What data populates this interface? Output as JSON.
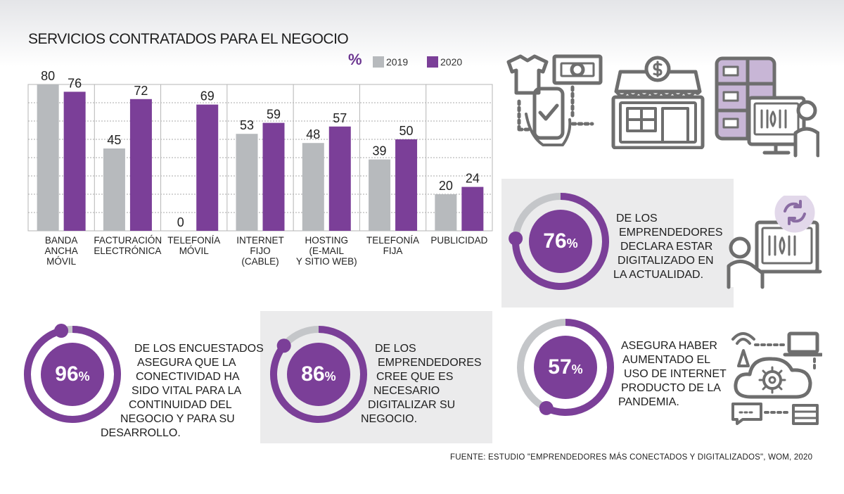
{
  "colors": {
    "y2019": "#b7babd",
    "y2020": "#7b3f98",
    "accent": "#6b3590",
    "ring_track": "#c4c6c9",
    "panel": "#ebebec",
    "icon": "#6e6e6e",
    "icon_fill": "#c8b6d6"
  },
  "chart_data": {
    "type": "bar",
    "title": "SERVICIOS CONTRATADOS PARA EL NEGOCIO",
    "unit_label": "%",
    "categories": [
      "BANDA ANCHA MÓVIL",
      "FACTURACIÓN ELECTRÓNICA",
      "TELEFONÍA MÓVIL",
      "INTERNET FIJO (CABLE)",
      "HOSTING (E-MAIL Y SITIO WEB)",
      "TELEFONÍA FIJA",
      "PUBLICIDAD"
    ],
    "category_lines": [
      [
        "BANDA",
        "ANCHA",
        "MÓVIL"
      ],
      [
        "FACTURACIÓN",
        "ELECTRÓNICA"
      ],
      [
        "TELEFONÍA",
        "MÓVIL"
      ],
      [
        "INTERNET",
        "FIJO",
        "(CABLE)"
      ],
      [
        "HOSTING",
        "(E-MAIL",
        "Y SITIO WEB)"
      ],
      [
        "TELEFONÍA",
        "FIJA"
      ],
      [
        "PUBLICIDAD"
      ]
    ],
    "series": [
      {
        "name": "2019",
        "values": [
          80,
          45,
          0,
          53,
          48,
          39,
          20
        ]
      },
      {
        "name": "2020",
        "values": [
          76,
          72,
          69,
          59,
          57,
          50,
          24
        ]
      }
    ],
    "ylim": [
      0,
      80
    ],
    "grid": true,
    "legend": "top-right"
  },
  "stats": [
    {
      "id": "s76",
      "value": 76,
      "display": "76",
      "lines": [
        "DE LOS",
        "EMPRENDEDORES",
        "DECLARA ESTAR",
        "DIGITALIZADO EN",
        "LA ACTUALIDAD."
      ]
    },
    {
      "id": "s96",
      "value": 96,
      "display": "96",
      "lines": [
        "DE LOS ENCUESTADOS",
        "ASEGURA QUE LA",
        "CONECTIVIDAD HA",
        "SIDO VITAL PARA LA",
        "CONTINUIDAD DEL",
        "NEGOCIO Y PARA SU",
        "DESARROLLO."
      ]
    },
    {
      "id": "s86",
      "value": 86,
      "display": "86",
      "lines": [
        "DE LOS",
        "EMPRENDEDORES",
        "CREE QUE ES",
        "NECESARIO",
        "DIGITALIZAR SU",
        "NEGOCIO."
      ]
    },
    {
      "id": "s57",
      "value": 57,
      "display": "57",
      "lines": [
        "ASEGURA HABER",
        "AUMENTADO EL",
        "USO DE INTERNET",
        "PRODUCTO DE LA",
        "PANDEMIA."
      ]
    }
  ],
  "pct_symbol": "%",
  "source": "FUENTE: ESTUDIO \"EMPRENDEDORES MÁS CONECTADOS Y DIGITALIZADOS\", WOM, 2020",
  "icons": [
    "ecommerce-icon",
    "storefront-icon",
    "server-computer-icon",
    "user-computer-sync-icon",
    "network-cloud-icon"
  ]
}
